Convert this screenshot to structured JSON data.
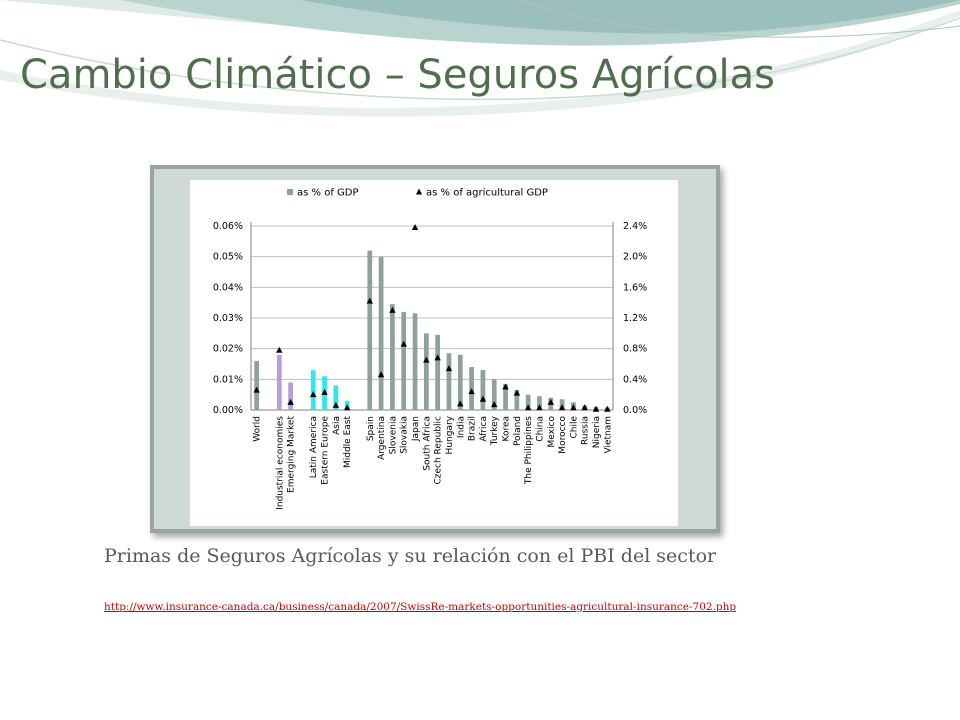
{
  "slide": {
    "title": "Cambio Climático – Seguros Agrícolas",
    "caption": "Primas de Seguros Agrícolas y su relación con el PBI del sector",
    "link": "http://www.insurance-canada.ca/business/canada/2007/SwissRe-markets-opportunities-agricultural-insurance-702.php"
  },
  "colors": {
    "title": "#4f6f4c",
    "frame": "#cfd9d5",
    "bar_default": "#8fa29a",
    "bar_industrial": "#b79ddc",
    "bar_latam": "#2ee8ee",
    "caption": "#595959",
    "link": "#cc0000"
  },
  "chart_data": {
    "type": "bar",
    "legend_position": "top",
    "grid": true,
    "categories": [
      "World",
      "Industrial economies",
      "Emerging Market",
      "Latin America",
      "Eastern Europe",
      "Asia",
      "Middle East",
      "Spain",
      "Argentina",
      "Slovenia",
      "Slovakia",
      "Japan",
      "South Africa",
      "Czech Republic",
      "Hungary",
      "India",
      "Brazil",
      "Africa",
      "Turkey",
      "Korea",
      "Poland",
      "The Philippines",
      "China",
      "Mexico",
      "Morocco",
      "Chile",
      "Russia",
      "Nigeria",
      "Vietnam"
    ],
    "series": [
      {
        "name": "as % of GDP",
        "axis": "left",
        "values": [
          0.016,
          0.018,
          0.009,
          0.013,
          0.011,
          0.008,
          0.003,
          0.052,
          0.05,
          0.0345,
          0.032,
          0.0315,
          0.025,
          0.0245,
          0.0185,
          0.018,
          0.014,
          0.013,
          0.01,
          0.0085,
          0.0065,
          0.005,
          0.0045,
          0.004,
          0.0035,
          0.0025,
          0.0015,
          0.001,
          0.0008
        ],
        "colors": [
          "#8fa29a",
          "#b79ddc",
          "#b79ddc",
          "#2ee8ee",
          "#2ee8ee",
          "#2ee8ee",
          "#2ee8ee",
          "#8fa29a",
          "#8fa29a",
          "#8fa29a",
          "#8fa29a",
          "#8fa29a",
          "#8fa29a",
          "#8fa29a",
          "#8fa29a",
          "#8fa29a",
          "#8fa29a",
          "#8fa29a",
          "#8fa29a",
          "#8fa29a",
          "#8fa29a",
          "#8fa29a",
          "#8fa29a",
          "#8fa29a",
          "#8fa29a",
          "#8fa29a",
          "#8fa29a",
          "#8fa29a",
          "#8fa29a"
        ]
      },
      {
        "name": "as % of agricultural GDP",
        "axis": "right",
        "marker": "triangle",
        "values": [
          0.26,
          0.78,
          0.1,
          0.2,
          0.23,
          0.06,
          0.03,
          1.42,
          0.46,
          1.3,
          0.86,
          2.38,
          0.65,
          0.68,
          0.54,
          0.08,
          0.24,
          0.14,
          0.07,
          0.3,
          0.22,
          0.03,
          0.03,
          0.1,
          0.03,
          0.03,
          0.03,
          0.01,
          0.01
        ]
      }
    ],
    "left_axis": {
      "min": 0,
      "max": 0.06,
      "ticks": [
        0,
        0.01,
        0.02,
        0.03,
        0.04,
        0.05,
        0.06
      ],
      "tick_labels": [
        "0.00%",
        "0.01%",
        "0.02%",
        "0.03%",
        "0.04%",
        "0.05%",
        "0.06%"
      ]
    },
    "right_axis": {
      "min": 0,
      "max": 2.4,
      "ticks": [
        0,
        0.4,
        0.8,
        1.2,
        1.6,
        2.0,
        2.4
      ],
      "tick_labels": [
        "0.0%",
        "0.4%",
        "0.8%",
        "1.2%",
        "1.6%",
        "2.0%",
        "2.4%"
      ]
    }
  }
}
